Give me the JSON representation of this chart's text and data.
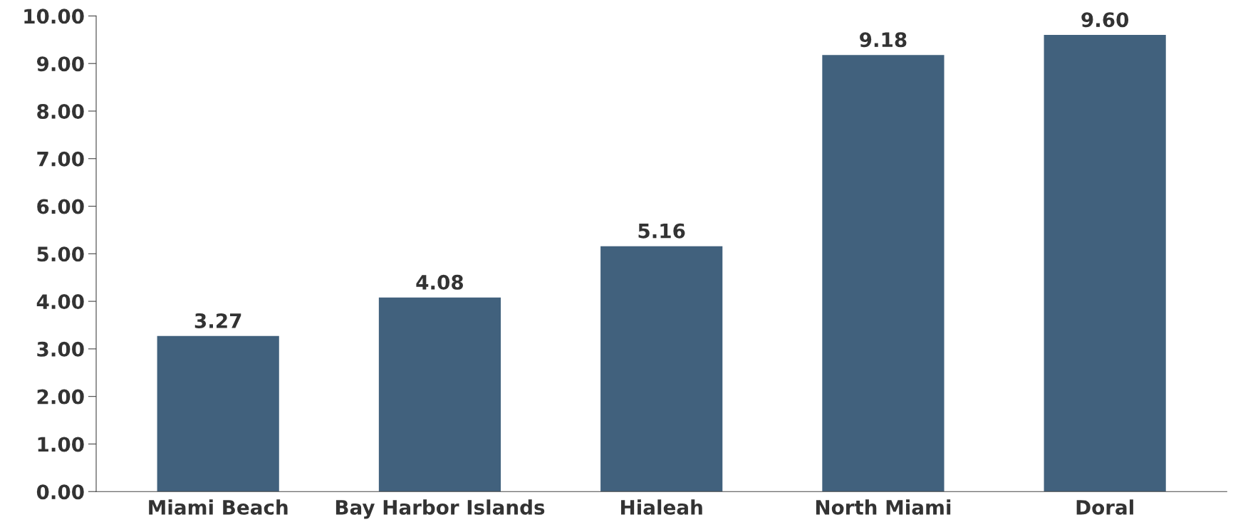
{
  "chart_data": {
    "type": "bar",
    "categories": [
      "Miami Beach",
      "Bay Harbor Islands",
      "Hialeah",
      "North Miami",
      "Doral"
    ],
    "values": [
      3.27,
      4.08,
      5.16,
      9.18,
      9.6
    ],
    "value_labels": [
      "3.27",
      "4.08",
      "5.16",
      "9.18",
      "9.60"
    ],
    "color": "#41617d",
    "ylim": [
      0,
      10
    ],
    "yticks": [
      {
        "value": 0,
        "label": "0.00"
      },
      {
        "value": 1,
        "label": "1.00"
      },
      {
        "value": 2,
        "label": "2.00"
      },
      {
        "value": 3,
        "label": "3.00"
      },
      {
        "value": 4,
        "label": "4.00"
      },
      {
        "value": 5,
        "label": "5.00"
      },
      {
        "value": 6,
        "label": "6.00"
      },
      {
        "value": 7,
        "label": "7.00"
      },
      {
        "value": 8,
        "label": "8.00"
      },
      {
        "value": 9,
        "label": "9.00"
      },
      {
        "value": 10,
        "label": "10.00"
      }
    ],
    "grid": false
  }
}
